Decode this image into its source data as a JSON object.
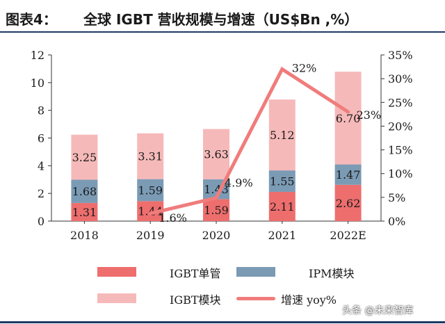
{
  "header": {
    "fig_label": "图表4：",
    "title": "全球 IGBT 营收规模与增速（US$Bn ,%）"
  },
  "colors": {
    "igbt_single": "#ee6e6e",
    "ipm_module": "#7b9bb5",
    "igbt_module": "#f6b9b9",
    "growth_line": "#f07c7c",
    "header_rule": "#1f3864"
  },
  "legend": {
    "igbt_single": "IGBT单管",
    "ipm_module": "IPM模块",
    "igbt_module": "IGBT模块",
    "growth": "增速 yoy%"
  },
  "watermark": "头条 @未来智库",
  "chart_data": {
    "type": "bar",
    "stacked": true,
    "categories": [
      "2018",
      "2019",
      "2020",
      "2021",
      "2022E"
    ],
    "series": [
      {
        "name": "IGBT单管",
        "key": "igbt_single",
        "values": [
          1.31,
          1.44,
          1.59,
          2.11,
          2.62
        ],
        "labels": [
          "1.31",
          "1.44",
          "1.59",
          "2.11",
          "2.62"
        ]
      },
      {
        "name": "IPM模块",
        "key": "ipm_module",
        "values": [
          1.68,
          1.59,
          1.43,
          1.55,
          1.47
        ],
        "labels": [
          "1.68",
          "1.59",
          "1.43",
          "1.55",
          "1.47"
        ]
      },
      {
        "name": "IGBT模块",
        "key": "igbt_module",
        "values": [
          3.25,
          3.31,
          3.63,
          5.12,
          6.7
        ],
        "labels": [
          "3.25",
          "3.31",
          "3.63",
          "5.12",
          "6.70"
        ]
      }
    ],
    "line": {
      "name": "增速 yoy%",
      "type": "line",
      "axis": "right",
      "categories": [
        "2019",
        "2020",
        "2021",
        "2022E"
      ],
      "values": [
        1.6,
        4.9,
        32,
        23
      ],
      "labels": [
        "1.6%",
        "4.9%",
        "32%",
        "23%"
      ]
    },
    "y_left": {
      "min": 0,
      "max": 12,
      "ticks": [
        "0",
        "2",
        "4",
        "6",
        "8",
        "10",
        "12"
      ]
    },
    "y_right": {
      "min": 0,
      "max": 35,
      "ticks": [
        "0%",
        "5%",
        "10%",
        "15%",
        "20%",
        "25%",
        "30%",
        "35%"
      ]
    },
    "grid": false,
    "legend_position": "bottom"
  }
}
